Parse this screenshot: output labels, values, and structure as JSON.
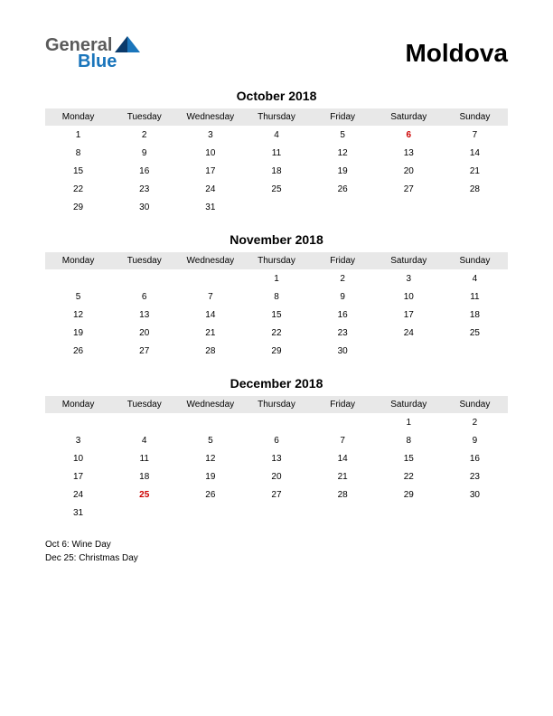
{
  "logo": {
    "part1": "General",
    "part2": "Blue"
  },
  "country": "Moldova",
  "day_headers": [
    "Monday",
    "Tuesday",
    "Wednesday",
    "Thursday",
    "Friday",
    "Saturday",
    "Sunday"
  ],
  "holiday_color": "#cc0000",
  "months": [
    {
      "title": "October 2018",
      "weeks": [
        [
          {
            "d": "1"
          },
          {
            "d": "2"
          },
          {
            "d": "3"
          },
          {
            "d": "4"
          },
          {
            "d": "5"
          },
          {
            "d": "6",
            "h": true
          },
          {
            "d": "7"
          }
        ],
        [
          {
            "d": "8"
          },
          {
            "d": "9"
          },
          {
            "d": "10"
          },
          {
            "d": "11"
          },
          {
            "d": "12"
          },
          {
            "d": "13"
          },
          {
            "d": "14"
          }
        ],
        [
          {
            "d": "15"
          },
          {
            "d": "16"
          },
          {
            "d": "17"
          },
          {
            "d": "18"
          },
          {
            "d": "19"
          },
          {
            "d": "20"
          },
          {
            "d": "21"
          }
        ],
        [
          {
            "d": "22"
          },
          {
            "d": "23"
          },
          {
            "d": "24"
          },
          {
            "d": "25"
          },
          {
            "d": "26"
          },
          {
            "d": "27"
          },
          {
            "d": "28"
          }
        ],
        [
          {
            "d": "29"
          },
          {
            "d": "30"
          },
          {
            "d": "31"
          },
          {
            "d": ""
          },
          {
            "d": ""
          },
          {
            "d": ""
          },
          {
            "d": ""
          }
        ]
      ]
    },
    {
      "title": "November 2018",
      "weeks": [
        [
          {
            "d": ""
          },
          {
            "d": ""
          },
          {
            "d": ""
          },
          {
            "d": "1"
          },
          {
            "d": "2"
          },
          {
            "d": "3"
          },
          {
            "d": "4"
          }
        ],
        [
          {
            "d": "5"
          },
          {
            "d": "6"
          },
          {
            "d": "7"
          },
          {
            "d": "8"
          },
          {
            "d": "9"
          },
          {
            "d": "10"
          },
          {
            "d": "11"
          }
        ],
        [
          {
            "d": "12"
          },
          {
            "d": "13"
          },
          {
            "d": "14"
          },
          {
            "d": "15"
          },
          {
            "d": "16"
          },
          {
            "d": "17"
          },
          {
            "d": "18"
          }
        ],
        [
          {
            "d": "19"
          },
          {
            "d": "20"
          },
          {
            "d": "21"
          },
          {
            "d": "22"
          },
          {
            "d": "23"
          },
          {
            "d": "24"
          },
          {
            "d": "25"
          }
        ],
        [
          {
            "d": "26"
          },
          {
            "d": "27"
          },
          {
            "d": "28"
          },
          {
            "d": "29"
          },
          {
            "d": "30"
          },
          {
            "d": ""
          },
          {
            "d": ""
          }
        ]
      ]
    },
    {
      "title": "December 2018",
      "weeks": [
        [
          {
            "d": ""
          },
          {
            "d": ""
          },
          {
            "d": ""
          },
          {
            "d": ""
          },
          {
            "d": ""
          },
          {
            "d": "1"
          },
          {
            "d": "2"
          }
        ],
        [
          {
            "d": "3"
          },
          {
            "d": "4"
          },
          {
            "d": "5"
          },
          {
            "d": "6"
          },
          {
            "d": "7"
          },
          {
            "d": "8"
          },
          {
            "d": "9"
          }
        ],
        [
          {
            "d": "10"
          },
          {
            "d": "11"
          },
          {
            "d": "12"
          },
          {
            "d": "13"
          },
          {
            "d": "14"
          },
          {
            "d": "15"
          },
          {
            "d": "16"
          }
        ],
        [
          {
            "d": "17"
          },
          {
            "d": "18"
          },
          {
            "d": "19"
          },
          {
            "d": "20"
          },
          {
            "d": "21"
          },
          {
            "d": "22"
          },
          {
            "d": "23"
          }
        ],
        [
          {
            "d": "24"
          },
          {
            "d": "25",
            "h": true
          },
          {
            "d": "26"
          },
          {
            "d": "27"
          },
          {
            "d": "28"
          },
          {
            "d": "29"
          },
          {
            "d": "30"
          }
        ],
        [
          {
            "d": "31"
          },
          {
            "d": ""
          },
          {
            "d": ""
          },
          {
            "d": ""
          },
          {
            "d": ""
          },
          {
            "d": ""
          },
          {
            "d": ""
          }
        ]
      ]
    }
  ],
  "holidays": [
    "Oct 6: Wine Day",
    "Dec 25: Christmas Day"
  ]
}
